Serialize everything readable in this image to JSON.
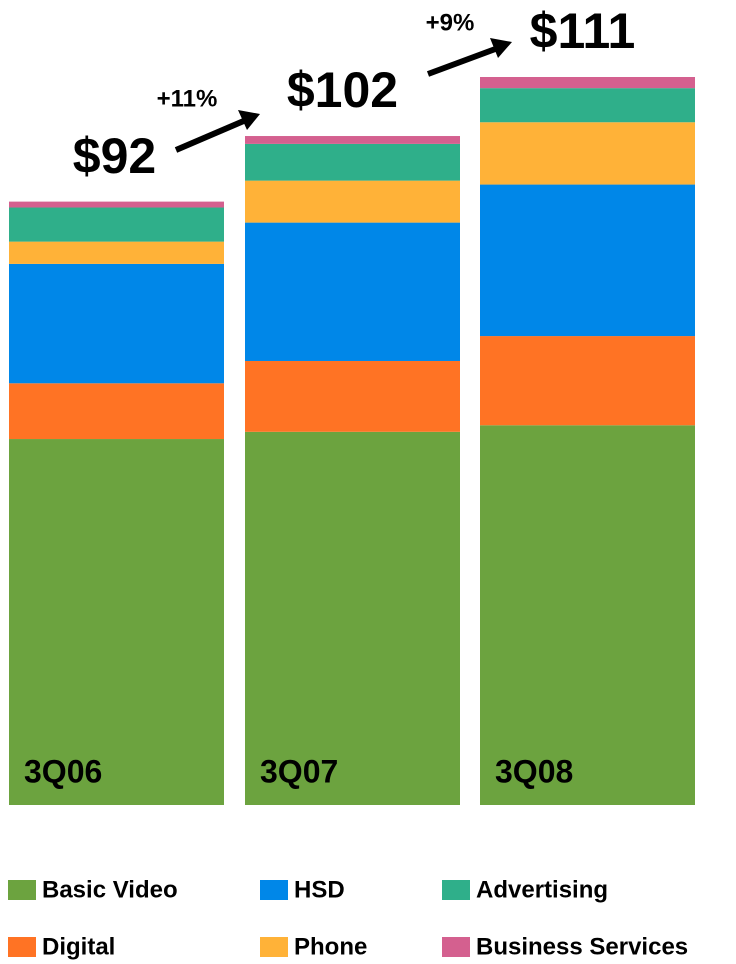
{
  "chart_data": {
    "type": "stacked_bar",
    "categories": [
      "3Q06",
      "3Q07",
      "3Q08"
    ],
    "series": [
      {
        "name": "Basic Video",
        "color": "#6ca33f",
        "values": [
          55.8,
          56.9,
          57.9
        ]
      },
      {
        "name": "Digital",
        "color": "#ff7324",
        "values": [
          8.5,
          10.8,
          13.6
        ]
      },
      {
        "name": "HSD",
        "color": "#0087e8",
        "values": [
          18.2,
          21.1,
          23.1
        ]
      },
      {
        "name": "Phone",
        "color": "#ffb238",
        "values": [
          3.4,
          6.4,
          9.5
        ]
      },
      {
        "name": "Advertising",
        "color": "#2faf8a",
        "values": [
          5.2,
          5.6,
          5.2
        ]
      },
      {
        "name": "Business Services",
        "color": "#d4608f",
        "values": [
          0.9,
          1.2,
          1.7
        ]
      }
    ],
    "totals": {
      "values": [
        92,
        102,
        111
      ],
      "value_labels": [
        "$92",
        "$102",
        "$111"
      ]
    },
    "growth": {
      "values": [
        11,
        9
      ],
      "value_labels": [
        "+11%",
        "+9%"
      ]
    }
  }
}
